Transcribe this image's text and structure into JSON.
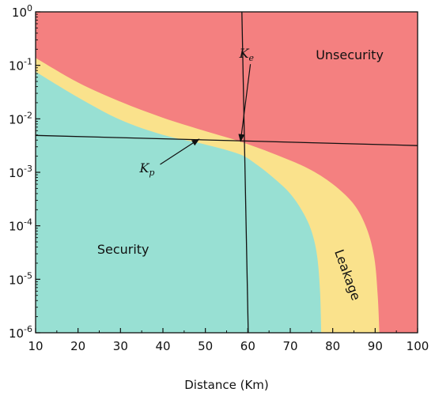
{
  "chart_data": {
    "type": "area",
    "title": "",
    "xlabel": "Distance (Km)",
    "ylabel": "",
    "xlim": [
      10,
      100
    ],
    "ylim_exponent": [
      -6,
      0
    ],
    "y_scale": "log",
    "grid": false,
    "x_ticks": [
      "10",
      "20",
      "30",
      "40",
      "50",
      "60",
      "70",
      "80",
      "90",
      "100"
    ],
    "y_ticks": [
      {
        "exponent": -6,
        "base": "10",
        "power": "-6"
      },
      {
        "exponent": -5,
        "base": "10",
        "power": "-5"
      },
      {
        "exponent": -4,
        "base": "10",
        "power": "-4"
      },
      {
        "exponent": -3,
        "base": "10",
        "power": "-3"
      },
      {
        "exponent": -2,
        "base": "10",
        "power": "-2"
      },
      {
        "exponent": -1,
        "base": "10",
        "power": "-1"
      },
      {
        "exponent": 0,
        "base": "10",
        "power": "0"
      }
    ],
    "regions": {
      "security": {
        "label": "Security",
        "color": "#98e0d3",
        "upper_boundary_exponent": [
          [
            10,
            -1.12
          ],
          [
            20,
            -1.6
          ],
          [
            30,
            -2.02
          ],
          [
            40,
            -2.3
          ],
          [
            50,
            -2.48
          ],
          [
            58,
            -2.66
          ],
          [
            62,
            -2.85
          ],
          [
            66,
            -3.1
          ],
          [
            70,
            -3.4
          ],
          [
            73,
            -3.75
          ],
          [
            75,
            -4.1
          ],
          [
            76.3,
            -4.55
          ],
          [
            77,
            -5.2
          ],
          [
            77.3,
            -6
          ]
        ]
      },
      "leakage": {
        "label": "Leakage",
        "color": "#fae28c",
        "upper_boundary_exponent": [
          [
            10,
            -0.86
          ],
          [
            20,
            -1.32
          ],
          [
            30,
            -1.68
          ],
          [
            40,
            -1.98
          ],
          [
            50,
            -2.23
          ],
          [
            58,
            -2.42
          ],
          [
            66,
            -2.65
          ],
          [
            74,
            -2.92
          ],
          [
            80,
            -3.22
          ],
          [
            85,
            -3.6
          ],
          [
            88,
            -4.05
          ],
          [
            89.8,
            -4.6
          ],
          [
            90.6,
            -5.3
          ],
          [
            91,
            -6
          ]
        ]
      },
      "unsecurity": {
        "label": "Unsecurity",
        "color": "#f48080"
      }
    },
    "reference_lines": [
      {
        "name": "horizontal",
        "points": [
          [
            10,
            -2.31
          ],
          [
            100,
            -2.5
          ]
        ]
      },
      {
        "name": "vertical",
        "points": [
          [
            58.6,
            0
          ],
          [
            60.1,
            -6
          ]
        ]
      }
    ],
    "annotations": [
      {
        "label": "K",
        "subscript": "e",
        "text_at": [
          58,
          -0.86
        ],
        "arrow_to": [
          58.3,
          -2.42
        ]
      },
      {
        "label": "K",
        "subscript": "p",
        "text_at": [
          34.5,
          -3.0
        ],
        "arrow_to": [
          48.5,
          -2.38
        ]
      }
    ]
  }
}
